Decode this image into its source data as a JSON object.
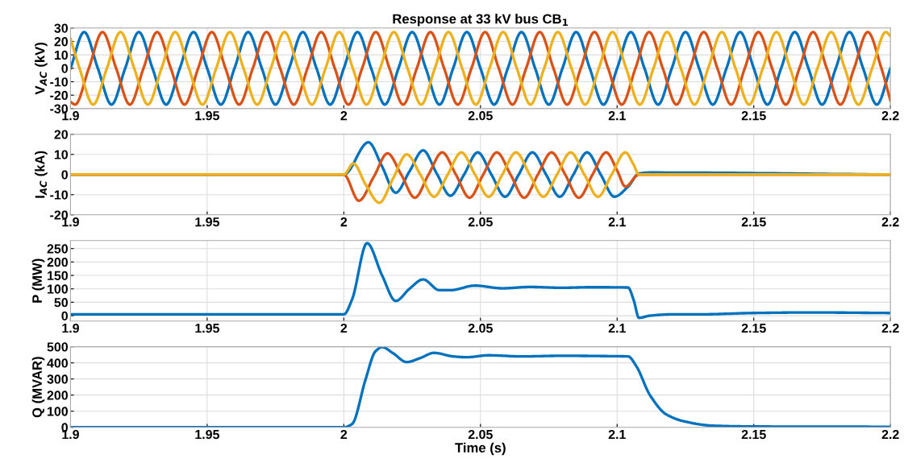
{
  "chart_data": [
    {
      "type": "line",
      "title": "Response at 33 kV bus CB$_{1}$",
      "ylabel": "V$_{AC}$ (kV)",
      "xlim": [
        1.9,
        2.2
      ],
      "xticks": [
        1.9,
        1.95,
        2,
        2.05,
        2.1,
        2.15,
        2.2
      ],
      "ylim": [
        -30,
        30
      ],
      "yticks": [
        -30,
        -20,
        -10,
        0,
        10,
        20,
        30
      ],
      "grid": true,
      "legend": false,
      "marker": "none",
      "line_style": "solid",
      "series": [
        {
          "color": "#0072bd",
          "x": [
            1.9,
            1.905,
            1.91,
            1.915,
            1.92,
            1.925,
            1.93,
            1.935,
            1.94,
            1.945,
            1.95,
            1.955,
            1.96,
            1.965,
            1.97,
            1.975,
            1.98,
            1.985,
            1.99,
            1.995,
            2,
            2.005,
            2.01,
            2.015,
            2.02,
            2.025,
            2.03,
            2.035,
            2.04,
            2.045,
            2.05,
            2.055,
            2.06,
            2.065,
            2.07,
            2.075,
            2.08,
            2.085,
            2.09,
            2.095,
            2.1,
            2.105,
            2.11,
            2.115,
            2.12,
            2.125,
            2.13,
            2.135,
            2.14,
            2.145,
            2.15,
            2.155,
            2.16,
            2.165,
            2.17,
            2.175,
            2.18,
            2.185,
            2.19,
            2.195,
            2.2
          ],
          "values": [
            0,
            27,
            0,
            -27,
            0,
            27,
            0,
            -27,
            0,
            27,
            0,
            -27,
            0,
            27,
            0,
            -27,
            0,
            27,
            0,
            -27,
            0,
            27,
            0,
            -27,
            0,
            27,
            0,
            -27,
            0,
            27,
            0,
            -27,
            0,
            27,
            0,
            -27,
            0,
            27,
            0,
            -27,
            0,
            27,
            0,
            -27,
            0,
            27,
            0,
            -27,
            0,
            27,
            0,
            -27,
            0,
            27,
            0,
            -27,
            0,
            27,
            0,
            -27,
            0
          ]
        },
        {
          "color": "#d95319",
          "x": [
            1.9,
            1.9017,
            1.9067,
            1.9117,
            1.9167,
            1.9217,
            1.9267,
            1.9317,
            1.9367,
            1.9417,
            1.9467,
            1.9517,
            1.9567,
            1.9617,
            1.9667,
            1.9717,
            1.9767,
            1.9817,
            1.9867,
            1.9917,
            1.9967,
            2.0017,
            2.0067,
            2.0117,
            2.0167,
            2.0217,
            2.0267,
            2.0317,
            2.0367,
            2.0417,
            2.0467,
            2.0517,
            2.0567,
            2.0617,
            2.0667,
            2.0717,
            2.0767,
            2.0817,
            2.0867,
            2.0917,
            2.0967,
            2.1017,
            2.1067,
            2.1117,
            2.1167,
            2.1217,
            2.1267,
            2.1317,
            2.1367,
            2.1417,
            2.1467,
            2.1517,
            2.1567,
            2.1617,
            2.1667,
            2.1717,
            2.1767,
            2.1817,
            2.1867,
            2.1917,
            2.1967,
            2.2
          ],
          "values": [
            -25,
            -27,
            0,
            27,
            0,
            -27,
            0,
            27,
            0,
            -27,
            0,
            27,
            0,
            -27,
            0,
            27,
            0,
            -27,
            0,
            27,
            0,
            -27,
            0,
            27,
            0,
            -27,
            0,
            27,
            0,
            -27,
            0,
            27,
            0,
            -27,
            0,
            27,
            0,
            -27,
            0,
            27,
            0,
            -27,
            0,
            27,
            0,
            -27,
            0,
            27,
            0,
            -27,
            0,
            27,
            0,
            -27,
            0,
            27,
            0,
            -27,
            0,
            27,
            0,
            -24
          ]
        },
        {
          "color": "#edb120",
          "x": [
            1.9,
            1.9033,
            1.9083,
            1.9133,
            1.9183,
            1.9233,
            1.9283,
            1.9333,
            1.9383,
            1.9433,
            1.9483,
            1.9533,
            1.9583,
            1.9633,
            1.9683,
            1.9733,
            1.9783,
            1.9833,
            1.9883,
            1.9933,
            1.9983,
            2.0033,
            2.0083,
            2.0133,
            2.0183,
            2.0233,
            2.0283,
            2.0333,
            2.0383,
            2.0433,
            2.0483,
            2.0533,
            2.0583,
            2.0633,
            2.0683,
            2.0733,
            2.0783,
            2.0833,
            2.0883,
            2.0933,
            2.0983,
            2.1033,
            2.1083,
            2.1133,
            2.1183,
            2.1233,
            2.1283,
            2.1333,
            2.1383,
            2.1433,
            2.1483,
            2.1533,
            2.1583,
            2.1633,
            2.1683,
            2.1733,
            2.1783,
            2.1833,
            2.1883,
            2.1933,
            2.1983,
            2.2
          ],
          "values": [
            22,
            0,
            -27,
            0,
            27,
            0,
            -27,
            0,
            27,
            0,
            -27,
            0,
            27,
            0,
            -27,
            0,
            27,
            0,
            -27,
            0,
            27,
            0,
            -27,
            0,
            27,
            0,
            -27,
            0,
            27,
            0,
            -27,
            0,
            27,
            0,
            -27,
            0,
            27,
            0,
            -27,
            0,
            27,
            0,
            -27,
            0,
            27,
            0,
            -27,
            0,
            27,
            0,
            -27,
            0,
            27,
            0,
            -27,
            0,
            27,
            0,
            -27,
            0,
            27,
            24
          ]
        }
      ]
    },
    {
      "type": "line",
      "ylabel": "I$_{AC}$ (kA)",
      "xlim": [
        1.9,
        2.2
      ],
      "xticks": [
        1.9,
        1.95,
        2,
        2.05,
        2.1,
        2.15,
        2.2
      ],
      "ylim": [
        -20,
        20
      ],
      "yticks": [
        -20,
        -10,
        0,
        10,
        20
      ],
      "grid": true,
      "legend": false,
      "marker": "none",
      "line_style": "solid",
      "series": [
        {
          "color": "#0072bd",
          "x": [
            1.9,
            2.0,
            2.009,
            2.014,
            2.019,
            2.024,
            2.029,
            2.034,
            2.039,
            2.044,
            2.049,
            2.054,
            2.059,
            2.064,
            2.069,
            2.074,
            2.079,
            2.084,
            2.089,
            2.094,
            2.099,
            2.104,
            2.108,
            2.112,
            2.2
          ],
          "values": [
            0,
            0,
            16,
            4,
            -9,
            1.5,
            12,
            0.5,
            -10.5,
            0,
            11,
            0,
            -11,
            0,
            11,
            0,
            -11,
            0,
            11,
            0,
            -11,
            -6,
            0.5,
            1,
            0
          ]
        },
        {
          "color": "#d95319",
          "x": [
            1.9,
            2.0,
            2.0055,
            2.011,
            2.016,
            2.021,
            2.026,
            2.031,
            2.036,
            2.041,
            2.046,
            2.051,
            2.056,
            2.061,
            2.066,
            2.071,
            2.076,
            2.081,
            2.086,
            2.091,
            2.096,
            2.1,
            2.103,
            2.108,
            2.2
          ],
          "values": [
            0,
            0,
            -13,
            -1,
            10.5,
            0,
            -11.5,
            0,
            11,
            0,
            -11.5,
            0,
            11,
            0,
            -11.5,
            0,
            11,
            0,
            -11.5,
            0,
            11,
            2,
            -6,
            0,
            0
          ]
        },
        {
          "color": "#edb120",
          "x": [
            1.9,
            2.0,
            2.0035,
            2.008,
            2.013,
            2.018,
            2.023,
            2.028,
            2.033,
            2.038,
            2.043,
            2.048,
            2.053,
            2.058,
            2.063,
            2.068,
            2.073,
            2.078,
            2.083,
            2.088,
            2.093,
            2.098,
            2.103,
            2.106,
            2.108,
            2.2
          ],
          "values": [
            0,
            0,
            5.5,
            -5,
            -14,
            -2,
            10,
            0,
            -11,
            0,
            11,
            0,
            -11,
            0,
            11,
            0,
            -11,
            0,
            11,
            0,
            -11,
            0,
            11,
            5,
            0,
            0
          ]
        }
      ]
    },
    {
      "type": "line",
      "ylabel": "P (MW)",
      "xlim": [
        1.9,
        2.2
      ],
      "xticks": [
        1.9,
        1.95,
        2,
        2.05,
        2.1,
        2.15,
        2.2
      ],
      "ylim": [
        -20,
        280
      ],
      "yticks": [
        0,
        50,
        100,
        150,
        200,
        250
      ],
      "grid": true,
      "legend": false,
      "marker": "none",
      "line_style": "solid",
      "series": [
        {
          "color": "#0072bd",
          "x": [
            1.9,
            2.0,
            2.003,
            2.0085,
            2.014,
            2.019,
            2.024,
            2.029,
            2.035,
            2.039,
            2.048,
            2.058,
            2.068,
            2.08,
            2.09,
            2.104,
            2.106,
            2.108,
            2.112,
            2.12,
            2.13,
            2.15,
            2.17,
            2.2
          ],
          "values": [
            5,
            5,
            60,
            270,
            150,
            55,
            100,
            135,
            95,
            95,
            112,
            102,
            107,
            104,
            106,
            105,
            60,
            -8,
            0,
            5,
            5,
            10,
            12,
            10
          ]
        }
      ]
    },
    {
      "type": "line",
      "ylabel": "Q (MVAR)",
      "xlabel": "Time (s)",
      "xlim": [
        1.9,
        2.2
      ],
      "xticks": [
        1.9,
        1.95,
        2,
        2.05,
        2.1,
        2.15,
        2.2
      ],
      "ylim": [
        0,
        500
      ],
      "yticks": [
        0,
        100,
        200,
        300,
        400,
        500
      ],
      "grid": true,
      "legend": false,
      "marker": "none",
      "line_style": "solid",
      "series": [
        {
          "color": "#0072bd",
          "x": [
            1.9,
            2.0,
            2.003,
            2.008,
            2.0115,
            2.014,
            2.018,
            2.023,
            2.028,
            2.033,
            2.04,
            2.045,
            2.053,
            2.065,
            2.08,
            2.095,
            2.104,
            2.107,
            2.112,
            2.118,
            2.125,
            2.135,
            2.15,
            2.2
          ],
          "values": [
            0,
            0,
            20,
            300,
            470,
            498,
            460,
            405,
            430,
            462,
            440,
            435,
            447,
            440,
            444,
            442,
            440,
            380,
            200,
            80,
            35,
            10,
            5,
            3
          ]
        }
      ]
    }
  ]
}
